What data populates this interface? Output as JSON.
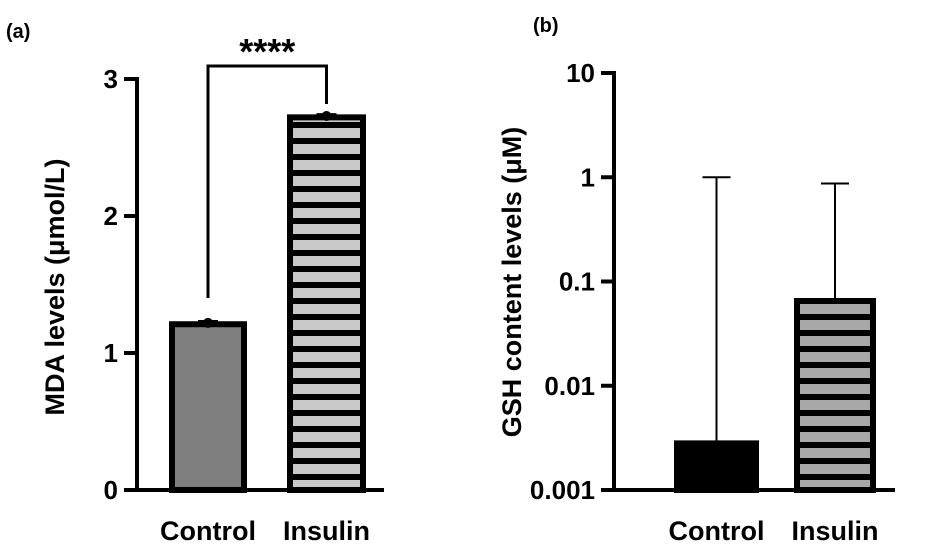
{
  "chart_data": [
    {
      "panel": "(a)",
      "type": "bar",
      "categories": [
        "Control",
        "Insulin"
      ],
      "values": [
        1.21,
        2.72
      ],
      "error_upper": [
        1.23,
        2.74
      ],
      "point_markers": [
        1.22,
        2.73
      ],
      "ylabel": "MDA levels (μmol/L)",
      "xlabel": "",
      "ylim": [
        0,
        3
      ],
      "yscale": "linear",
      "yticks": [
        0,
        1,
        2,
        3
      ],
      "ytick_labels": [
        "0",
        "1",
        "2",
        "3"
      ],
      "bar_styles": [
        "solid-gray",
        "striped-gray"
      ],
      "colors": {
        "solid": "#7f7f7f",
        "stripe_light": "#c8c8c8",
        "stripe_dark": "#000000",
        "outline": "#000000"
      },
      "significance": {
        "label": "****",
        "between": [
          "Control",
          "Insulin"
        ]
      }
    },
    {
      "panel": "(b)",
      "type": "bar",
      "categories": [
        "Control",
        "Insulin"
      ],
      "values": [
        0.0028,
        0.065
      ],
      "error_upper": [
        1.0,
        0.87
      ],
      "ylabel": "GSH content levels (μM)",
      "xlabel": "",
      "ylim": [
        0.001,
        10
      ],
      "yscale": "log",
      "yticks": [
        0.001,
        0.01,
        0.1,
        1,
        10
      ],
      "ytick_labels": [
        "0.001",
        "0.01",
        "0.1",
        "1",
        "10"
      ],
      "bar_styles": [
        "solid-black",
        "striped-gray"
      ],
      "colors": {
        "solid": "#000000",
        "stripe_light": "#a8a8a8",
        "stripe_dark": "#000000",
        "outline": "#000000"
      }
    }
  ]
}
